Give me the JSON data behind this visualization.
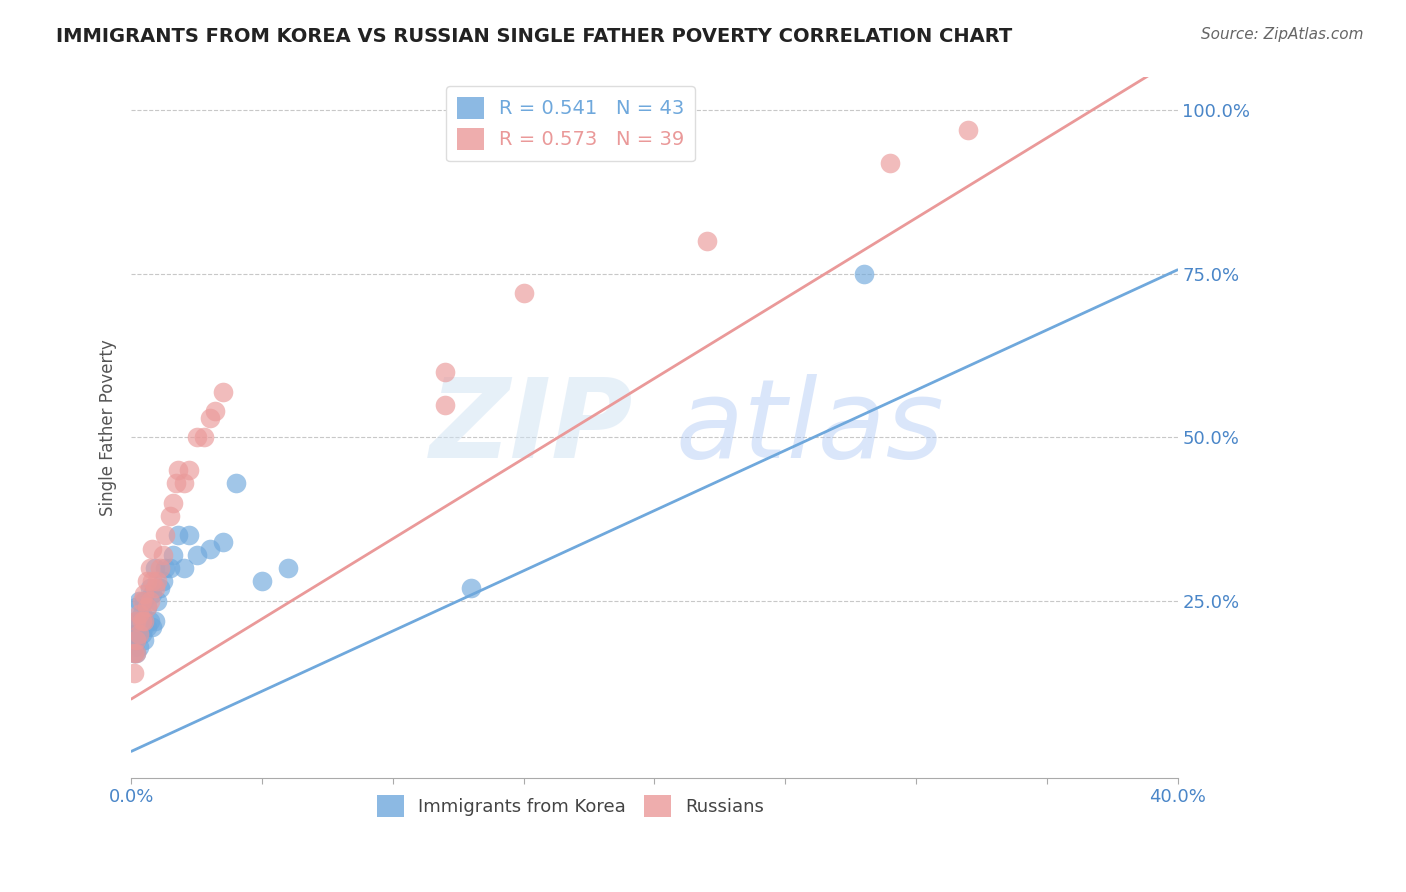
{
  "title": "IMMIGRANTS FROM KOREA VS RUSSIAN SINGLE FATHER POVERTY CORRELATION CHART",
  "source": "Source: ZipAtlas.com",
  "ylabel": "Single Father Poverty",
  "xlim": [
    0.0,
    0.4
  ],
  "ylim": [
    -0.02,
    1.05
  ],
  "korea_color": "#6fa8dc",
  "russia_color": "#ea9999",
  "background_color": "#ffffff",
  "grid_color": "#c8c8c8",
  "title_color": "#222222",
  "axis_label_color": "#4a86c8",
  "source_color": "#666666",
  "korea_R": 0.541,
  "korea_N": 43,
  "russia_R": 0.573,
  "russia_N": 39,
  "korea_trend_intercept": 0.02,
  "korea_trend_slope": 1.84,
  "russia_trend_intercept": 0.1,
  "russia_trend_slope": 2.45,
  "korea_scatter_x": [
    0.001,
    0.001,
    0.001,
    0.002,
    0.002,
    0.002,
    0.002,
    0.002,
    0.003,
    0.003,
    0.003,
    0.003,
    0.004,
    0.004,
    0.005,
    0.005,
    0.005,
    0.005,
    0.006,
    0.006,
    0.007,
    0.007,
    0.008,
    0.008,
    0.009,
    0.009,
    0.01,
    0.011,
    0.012,
    0.013,
    0.015,
    0.016,
    0.018,
    0.02,
    0.022,
    0.025,
    0.03,
    0.035,
    0.04,
    0.05,
    0.06,
    0.13,
    0.28
  ],
  "korea_scatter_y": [
    0.17,
    0.18,
    0.2,
    0.17,
    0.19,
    0.2,
    0.22,
    0.24,
    0.18,
    0.2,
    0.22,
    0.25,
    0.2,
    0.23,
    0.19,
    0.21,
    0.22,
    0.25,
    0.21,
    0.24,
    0.22,
    0.27,
    0.21,
    0.26,
    0.22,
    0.3,
    0.25,
    0.27,
    0.28,
    0.3,
    0.3,
    0.32,
    0.35,
    0.3,
    0.35,
    0.32,
    0.33,
    0.34,
    0.43,
    0.28,
    0.3,
    0.27,
    0.75
  ],
  "russia_scatter_x": [
    0.001,
    0.001,
    0.002,
    0.002,
    0.002,
    0.003,
    0.003,
    0.004,
    0.004,
    0.005,
    0.005,
    0.006,
    0.006,
    0.007,
    0.007,
    0.008,
    0.008,
    0.009,
    0.01,
    0.011,
    0.012,
    0.013,
    0.015,
    0.016,
    0.017,
    0.018,
    0.02,
    0.022,
    0.025,
    0.028,
    0.03,
    0.032,
    0.035,
    0.12,
    0.12,
    0.15,
    0.22,
    0.29,
    0.32
  ],
  "russia_scatter_y": [
    0.14,
    0.17,
    0.17,
    0.19,
    0.22,
    0.2,
    0.23,
    0.22,
    0.25,
    0.22,
    0.26,
    0.24,
    0.28,
    0.25,
    0.3,
    0.28,
    0.33,
    0.27,
    0.28,
    0.3,
    0.32,
    0.35,
    0.38,
    0.4,
    0.43,
    0.45,
    0.43,
    0.45,
    0.5,
    0.5,
    0.53,
    0.54,
    0.57,
    0.55,
    0.6,
    0.72,
    0.8,
    0.92,
    0.97
  ]
}
